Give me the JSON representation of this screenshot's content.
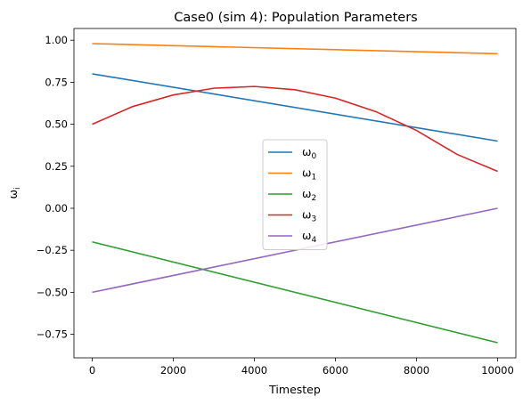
{
  "chart_data": {
    "type": "line",
    "title": "Case0 (sim 4): Population Parameters",
    "xlabel": "Timestep",
    "ylabel": "ω",
    "ylabel_sub": "i",
    "xlim": [
      -450,
      10450
    ],
    "ylim": [
      -0.89,
      1.07
    ],
    "xticks": [
      0,
      2000,
      4000,
      6000,
      8000,
      10000
    ],
    "xtick_labels": [
      "0",
      "2000",
      "4000",
      "6000",
      "8000",
      "10000"
    ],
    "yticks": [
      -0.75,
      -0.5,
      -0.25,
      0.0,
      0.25,
      0.5,
      0.75,
      1.0
    ],
    "ytick_labels": [
      "−0.75",
      "−0.50",
      "−0.25",
      "0.00",
      "0.25",
      "0.50",
      "0.75",
      "1.00"
    ],
    "grid": false,
    "legend_position": "center",
    "series": [
      {
        "name": "ω",
        "sub": "0",
        "color": "#1f77b4",
        "x": [
          0,
          10000
        ],
        "y": [
          0.8,
          0.4
        ]
      },
      {
        "name": "ω",
        "sub": "1",
        "color": "#ff7f0e",
        "x": [
          0,
          10000
        ],
        "y": [
          0.98,
          0.92
        ]
      },
      {
        "name": "ω",
        "sub": "2",
        "color": "#2ca02c",
        "x": [
          0,
          10000
        ],
        "y": [
          -0.2,
          -0.8
        ]
      },
      {
        "name": "ω",
        "sub": "3",
        "color": "#d62728",
        "x": [
          0,
          1000,
          2000,
          3000,
          4000,
          5000,
          6000,
          7000,
          8000,
          9000,
          10000
        ],
        "y": [
          0.5,
          0.6056,
          0.6744,
          0.7144,
          0.725,
          0.7056,
          0.6556,
          0.575,
          0.4631,
          0.3206,
          0.22
        ]
      },
      {
        "name": "ω",
        "sub": "4",
        "color": "#9467bd",
        "x": [
          0,
          10000
        ],
        "y": [
          -0.5,
          0.0
        ]
      }
    ]
  }
}
